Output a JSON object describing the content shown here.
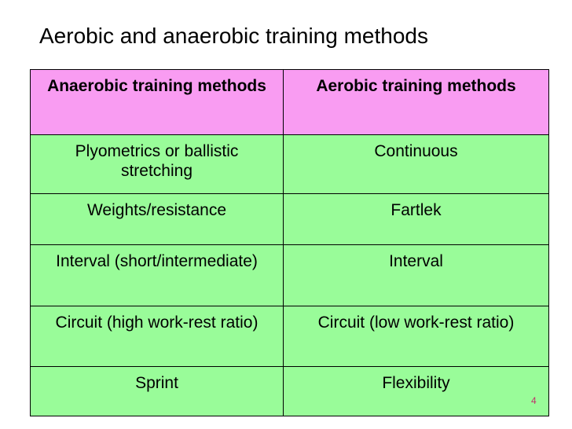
{
  "title": "Aerobic and anaerobic training methods",
  "table": {
    "header": [
      "Anaerobic training methods",
      "Aerobic training methods"
    ],
    "rows": [
      [
        "Plyometrics or ballistic stretching",
        "Continuous"
      ],
      [
        "Weights/resistance",
        "Fartlek"
      ],
      [
        "Interval (short/intermediate)",
        "Interval"
      ],
      [
        "Circuit (high work-rest ratio)",
        "Circuit (low work-rest ratio)"
      ],
      [
        "Sprint",
        "Flexibility"
      ]
    ]
  },
  "page_number": "4"
}
